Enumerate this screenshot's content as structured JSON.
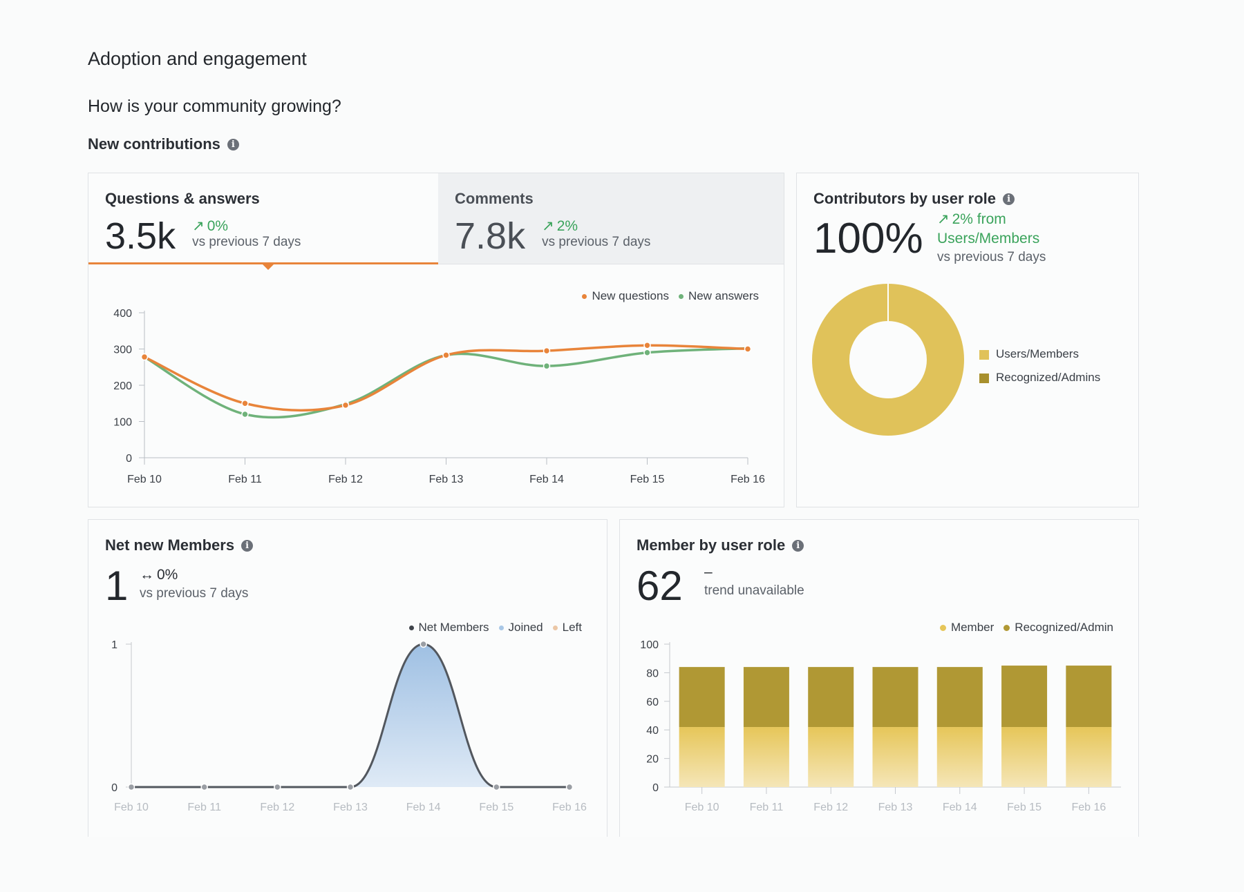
{
  "page": {
    "title": "Adoption and engagement",
    "question": "How is your community growing?",
    "section": "New contributions"
  },
  "qa_card": {
    "tab_qa": {
      "label": "Questions & answers",
      "value": "3.5k",
      "trend": "0%",
      "trend_sub": "vs previous 7 days"
    },
    "tab_comments": {
      "label": "Comments",
      "value": "7.8k",
      "trend": "2%",
      "trend_sub": "vs previous 7 days"
    },
    "legend": [
      "New questions",
      "New answers"
    ],
    "colors": {
      "questions": "#e8843a",
      "answers": "#6fb27a"
    }
  },
  "contributors_card": {
    "title": "Contributors by user role",
    "value": "100%",
    "trend_line1": "2% from",
    "trend_line2": "Users/Members",
    "trend_sub": "vs previous 7 days",
    "legend": [
      "Users/Members",
      "Recognized/Admins"
    ],
    "colors": {
      "users": "#e0c25a",
      "admins": "#a8902d"
    }
  },
  "net_members_card": {
    "title": "Net new Members",
    "value": "1",
    "trend": "0%",
    "trend_sub": "vs previous 7 days",
    "legend": [
      "Net Members",
      "Joined",
      "Left"
    ],
    "colors": {
      "net": "#3f434a",
      "joined": "#a9c7e6",
      "left": "#ebc7a6"
    }
  },
  "member_role_card": {
    "title": "Member by user role",
    "value": "62",
    "trend": "–",
    "trend_sub": "trend unavailable",
    "legend": [
      "Member",
      "Recognized/Admin"
    ],
    "colors": {
      "member": "#e6c659",
      "admin": "#b09834"
    }
  },
  "chart_data": [
    {
      "type": "line",
      "x": [
        "Feb 10",
        "Feb 11",
        "Feb 12",
        "Feb 13",
        "Feb 14",
        "Feb 15",
        "Feb 16"
      ],
      "ylim": [
        0,
        400
      ],
      "yticks": [
        0,
        100,
        200,
        300,
        400
      ],
      "series": [
        {
          "name": "New questions",
          "values": [
            278,
            150,
            145,
            283,
            295,
            310,
            300
          ]
        },
        {
          "name": "New answers",
          "values": [
            278,
            120,
            148,
            283,
            253,
            290,
            302
          ]
        }
      ]
    },
    {
      "type": "pie",
      "labels": [
        "Users/Members",
        "Recognized/Admins"
      ],
      "values": [
        100,
        0
      ]
    },
    {
      "type": "area",
      "x": [
        "Feb 10",
        "Feb 11",
        "Feb 12",
        "Feb 13",
        "Feb 14",
        "Feb 15",
        "Feb 16"
      ],
      "ylim": [
        0,
        1
      ],
      "yticks": [
        0,
        1
      ],
      "series": [
        {
          "name": "Net Members",
          "values": [
            0,
            0,
            0,
            0,
            1,
            0,
            0
          ]
        }
      ]
    },
    {
      "type": "bar",
      "categories": [
        "Feb 10",
        "Feb 11",
        "Feb 12",
        "Feb 13",
        "Feb 14",
        "Feb 15",
        "Feb 16"
      ],
      "ylim": [
        0,
        100
      ],
      "yticks": [
        0,
        20,
        40,
        60,
        80,
        100
      ],
      "stacked": true,
      "series": [
        {
          "name": "Member",
          "values": [
            42,
            42,
            42,
            42,
            42,
            42,
            42
          ]
        },
        {
          "name": "Recognized/Admin",
          "values": [
            42,
            42,
            42,
            42,
            42,
            43,
            43
          ]
        }
      ]
    }
  ]
}
